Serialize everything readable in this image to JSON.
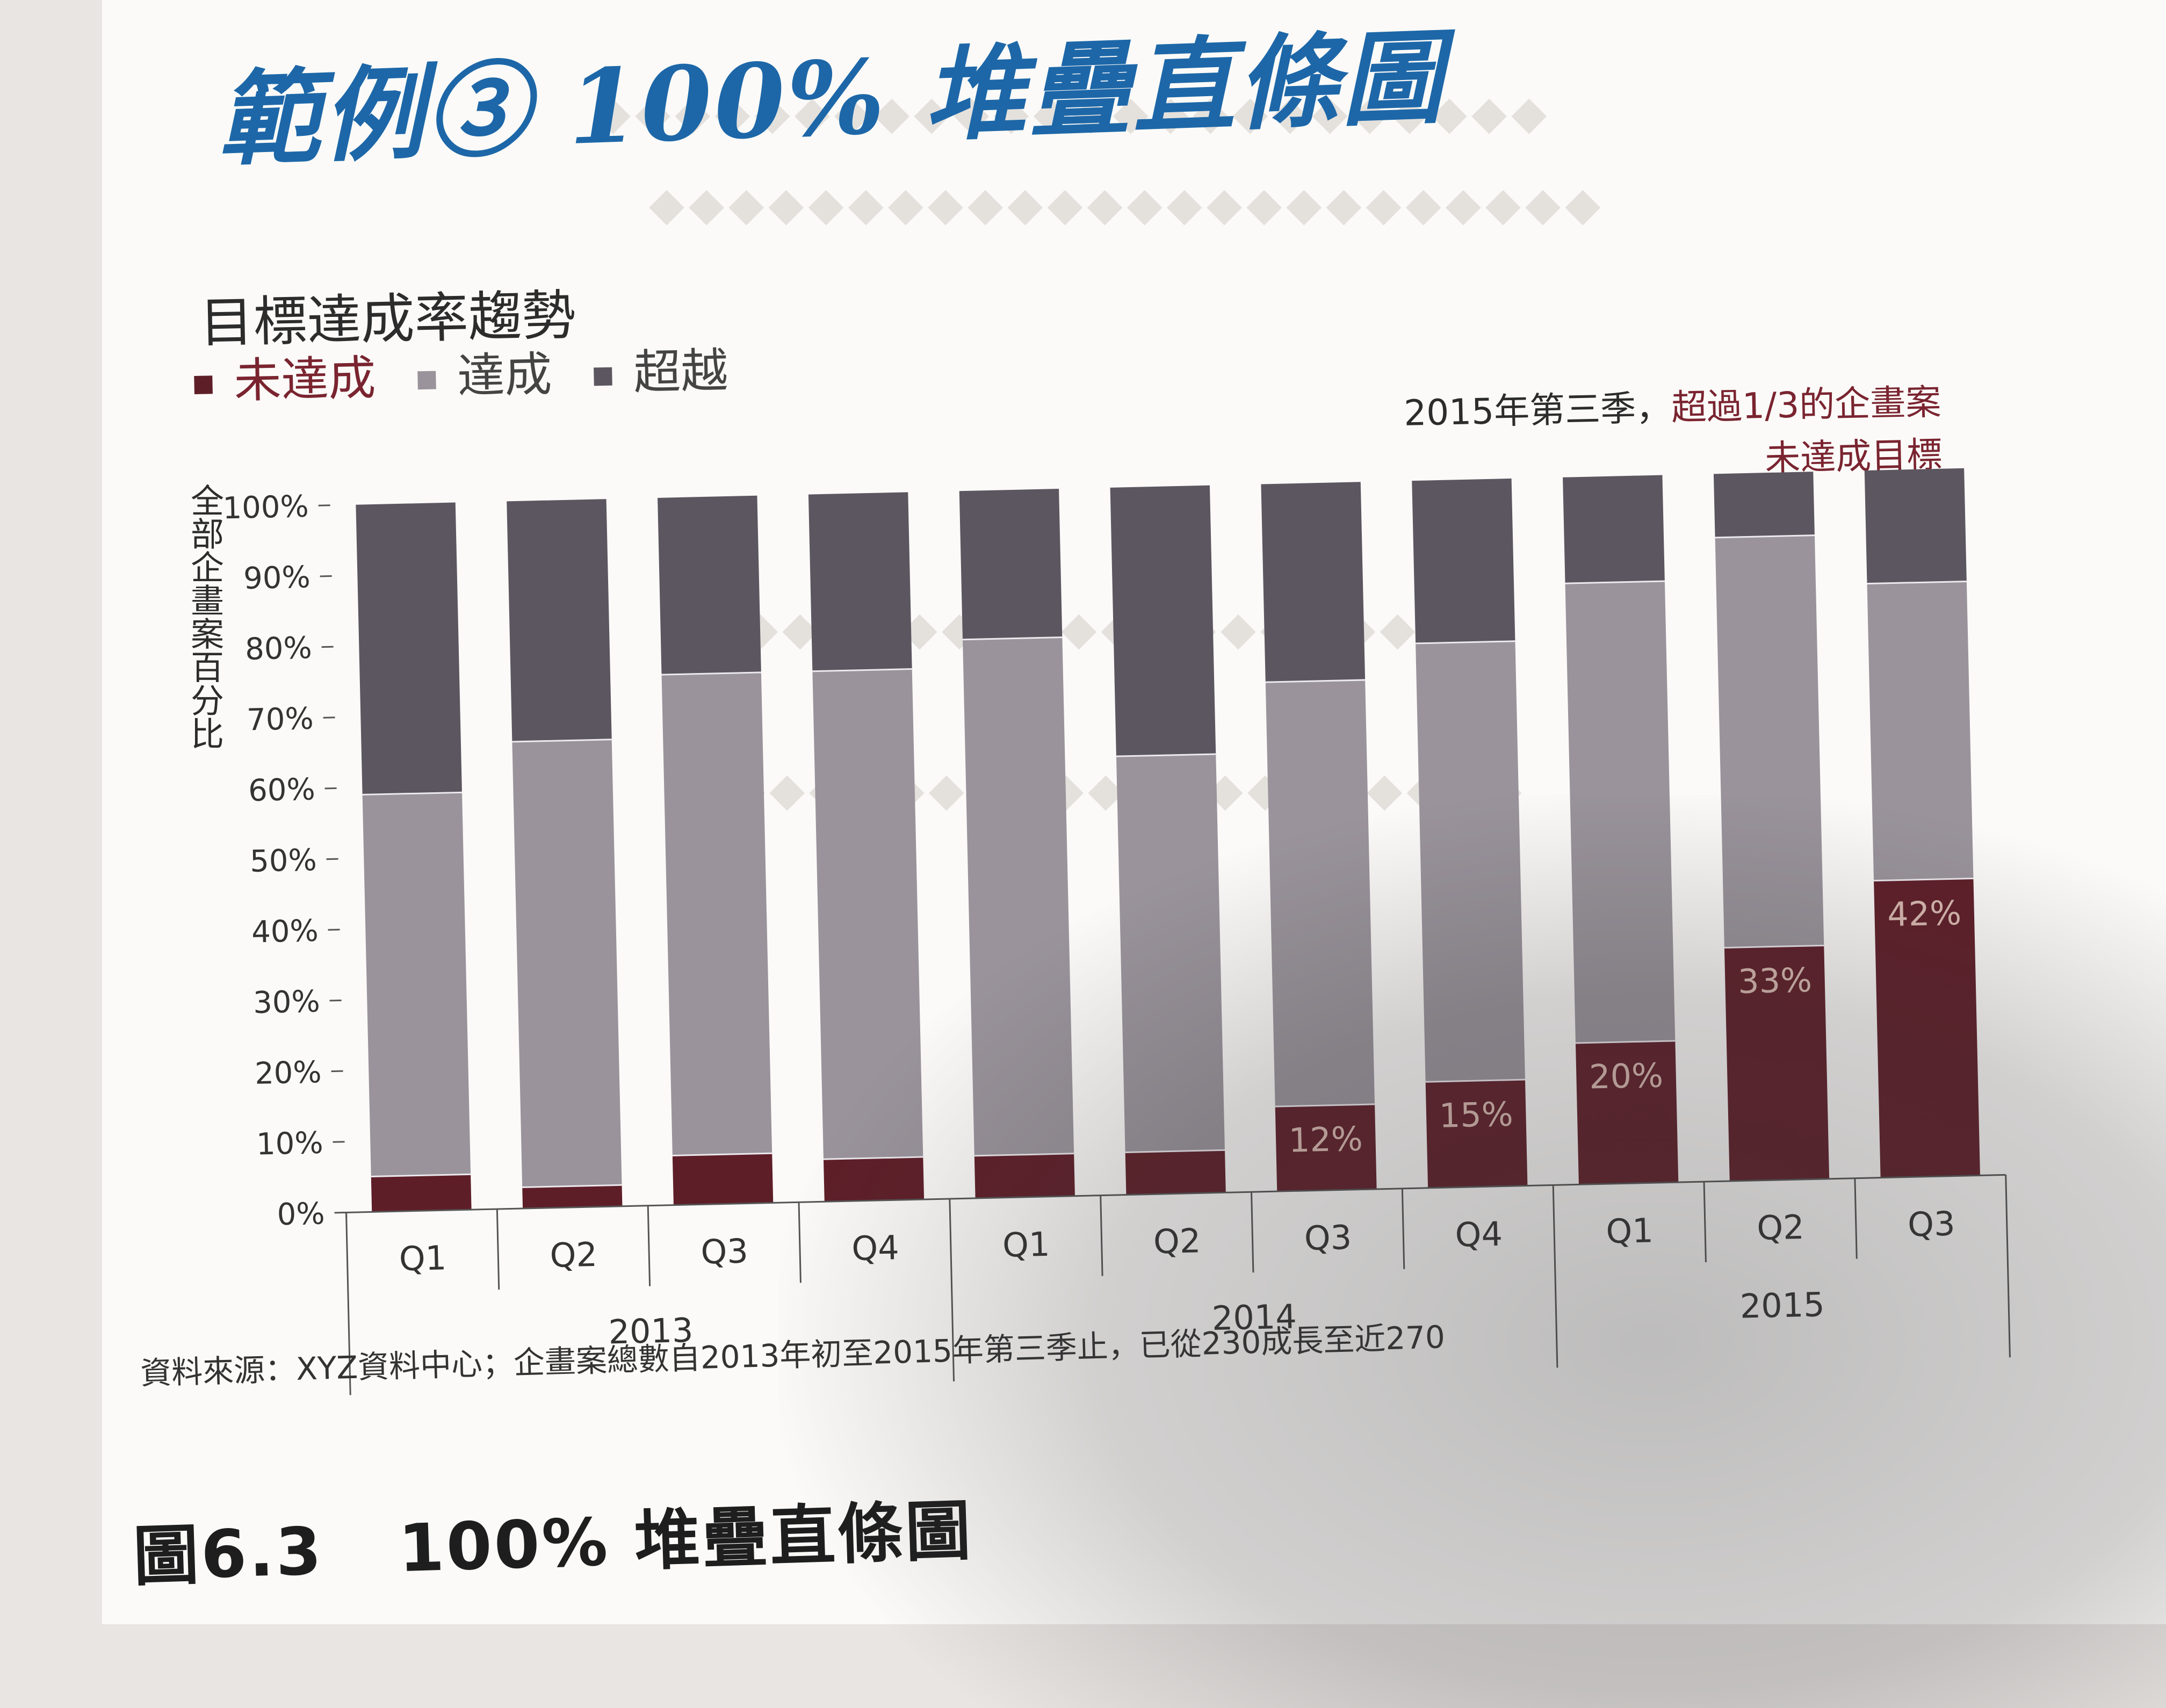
{
  "section_title": "範例③ 100% 堆疊直條圖",
  "figure_caption": {
    "number": "圖6.3",
    "title": "100% 堆疊直條圖"
  },
  "source_note": "資料來源：XYZ資料中心；企畫案總數自2013年初至2015年第三季止，已從230成長至近270",
  "callout": {
    "prefix": "2015年第三季，",
    "highlight": "超過1/3的企畫案",
    "line2": "未達成目標"
  },
  "colors": {
    "missed": "#5e1e28",
    "achieved": "#9a939b",
    "exceeded": "#5c5660",
    "accent": "#1d67a8",
    "callout": "#7a2430"
  },
  "chart_data": {
    "type": "bar",
    "stacked": "percent",
    "title": "目標達成率趨勢",
    "ylabel": "全部企畫案百分比",
    "xlabel": "",
    "ylim": [
      0,
      100
    ],
    "y_ticks": [
      "0%",
      "10%",
      "20%",
      "30%",
      "40%",
      "50%",
      "60%",
      "70%",
      "80%",
      "90%",
      "100%"
    ],
    "legend": [
      {
        "name": "未達成",
        "color": "#5e1e28"
      },
      {
        "name": "達成",
        "color": "#9a939b"
      },
      {
        "name": "超越",
        "color": "#5c5660"
      }
    ],
    "categories": [
      "Q1",
      "Q2",
      "Q3",
      "Q4",
      "Q1",
      "Q2",
      "Q3",
      "Q4",
      "Q1",
      "Q2",
      "Q3"
    ],
    "groups": [
      {
        "label": "2013",
        "start": 0,
        "end": 3
      },
      {
        "label": "2014",
        "start": 4,
        "end": 7
      },
      {
        "label": "2015",
        "start": 8,
        "end": 10
      }
    ],
    "series": [
      {
        "name": "未達成",
        "values": [
          5,
          3,
          7,
          6,
          6,
          6,
          12,
          15,
          20,
          33,
          42
        ],
        "labels": [
          "",
          "",
          "",
          "",
          "",
          "",
          "12%",
          "15%",
          "20%",
          "33%",
          "42%"
        ]
      },
      {
        "name": "達成",
        "values": [
          54,
          63,
          68,
          69,
          73,
          56,
          60,
          62,
          65,
          58,
          42
        ]
      },
      {
        "name": "超越",
        "values": [
          41,
          34,
          25,
          25,
          21,
          38,
          28,
          23,
          15,
          9,
          16
        ]
      }
    ]
  }
}
